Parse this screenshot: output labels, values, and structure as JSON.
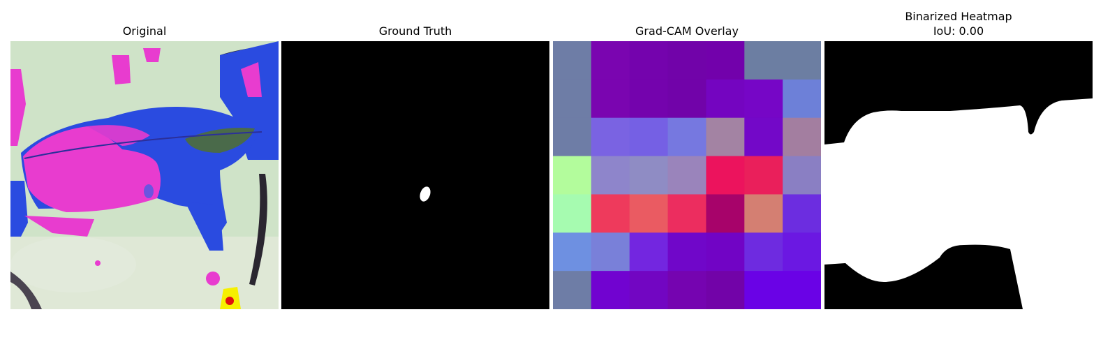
{
  "panels": [
    {
      "title": "Original"
    },
    {
      "title": "Ground Truth"
    },
    {
      "title": "Grad-CAM Overlay"
    },
    {
      "title": "Binarized Heatmap",
      "subtitle": "IoU: 0.00"
    }
  ],
  "colors": {
    "background": "#ffffff",
    "mask_fg": "#ffffff",
    "mask_bg": "#000000",
    "leaf_magenta": "#e83ccf",
    "leaf_blue": "#2a4be0",
    "bg_pale_green": "#cfe3c8"
  },
  "heatmap_grid": [
    [
      "#6e7da6",
      "#7a05b0",
      "#7403ad",
      "#7103a9",
      "#7201ab",
      "#6c7ea2",
      "#6c7ea2"
    ],
    [
      "#6e7da6",
      "#7a05b0",
      "#7403ad",
      "#7103a9",
      "#7405c0",
      "#7606c6",
      "#6d80d8"
    ],
    [
      "#6e7da6",
      "#7a63e2",
      "#7560e4",
      "#7678e0",
      "#a383a3",
      "#7308c8",
      "#a37ea0"
    ],
    [
      "#b3fc9c",
      "#8e85cb",
      "#8f8cc4",
      "#9a84bb",
      "#ec135d",
      "#ea1f5b",
      "#8a7fc3"
    ],
    [
      "#a6fbb0",
      "#ee3a5c",
      "#ea5b62",
      "#ec2d5f",
      "#a7036a",
      "#d47f72",
      "#6c2de0"
    ],
    [
      "#6e90e1",
      "#7980d9",
      "#7326e0",
      "#7007c9",
      "#7104c5",
      "#6e2be0",
      "#6b18e2"
    ],
    [
      "#6e7da6",
      "#7103d0",
      "#7206c2",
      "#7504b0",
      "#7203a8",
      "#6a02e6",
      "#6a02e6"
    ]
  ]
}
